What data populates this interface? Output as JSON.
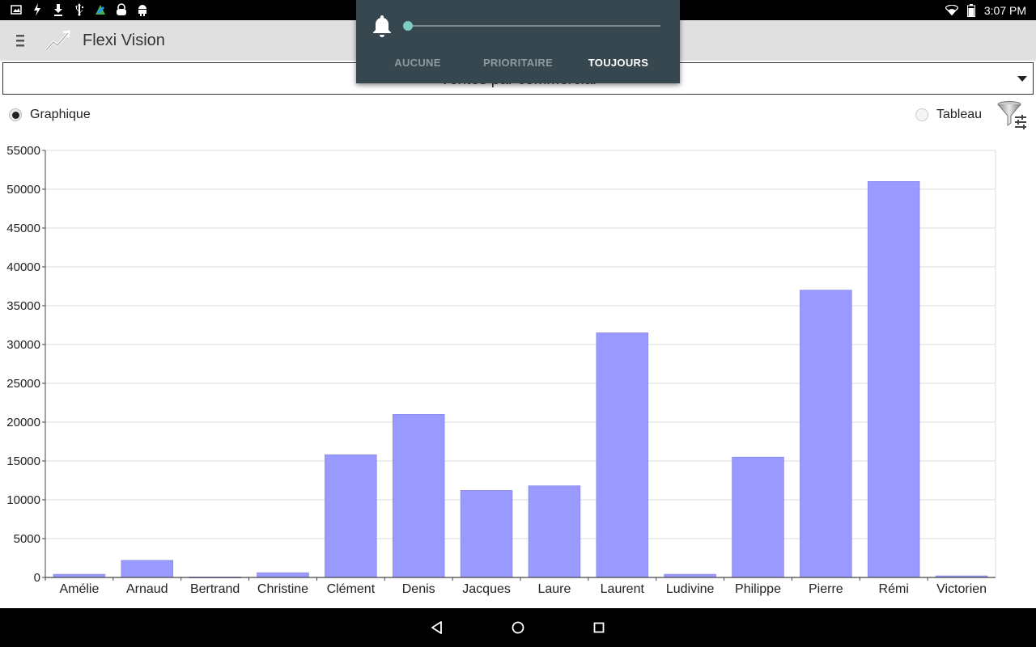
{
  "status_bar": {
    "left_icons": [
      "image-icon",
      "flash-icon",
      "download-icon",
      "usb-icon",
      "app-update-icon",
      "lock-icon",
      "android-icon"
    ],
    "time": "3:07 PM"
  },
  "app_bar": {
    "title": "Flexi Vision"
  },
  "report_selector": {
    "value": "Ventes par commercial"
  },
  "view_mode": {
    "graph_label": "Graphique",
    "table_label": "Tableau",
    "selected": "graph"
  },
  "notification_popup": {
    "options": [
      "AUCUNE",
      "PRIORITAIRE",
      "TOUJOURS"
    ],
    "active_index": 2
  },
  "chart_data": {
    "type": "bar",
    "categories": [
      "Amélie",
      "Arnaud",
      "Bertrand",
      "Christine",
      "Clément",
      "Denis",
      "Jacques",
      "Laure",
      "Laurent",
      "Ludivine",
      "Philippe",
      "Pierre",
      "Rémi",
      "Victorien"
    ],
    "values": [
      400,
      2200,
      50,
      600,
      15800,
      21000,
      11200,
      11800,
      31500,
      400,
      15500,
      37000,
      51000,
      200
    ],
    "ylim": [
      0,
      55000
    ],
    "yticks": [
      0,
      5000,
      10000,
      15000,
      20000,
      25000,
      30000,
      35000,
      40000,
      45000,
      50000,
      55000
    ],
    "grid": true,
    "bar_color": "#9999ff"
  },
  "colors": {
    "app_bar": "#e0e0e0",
    "popup": "#37474f",
    "slider_accent": "#80cbc4"
  }
}
